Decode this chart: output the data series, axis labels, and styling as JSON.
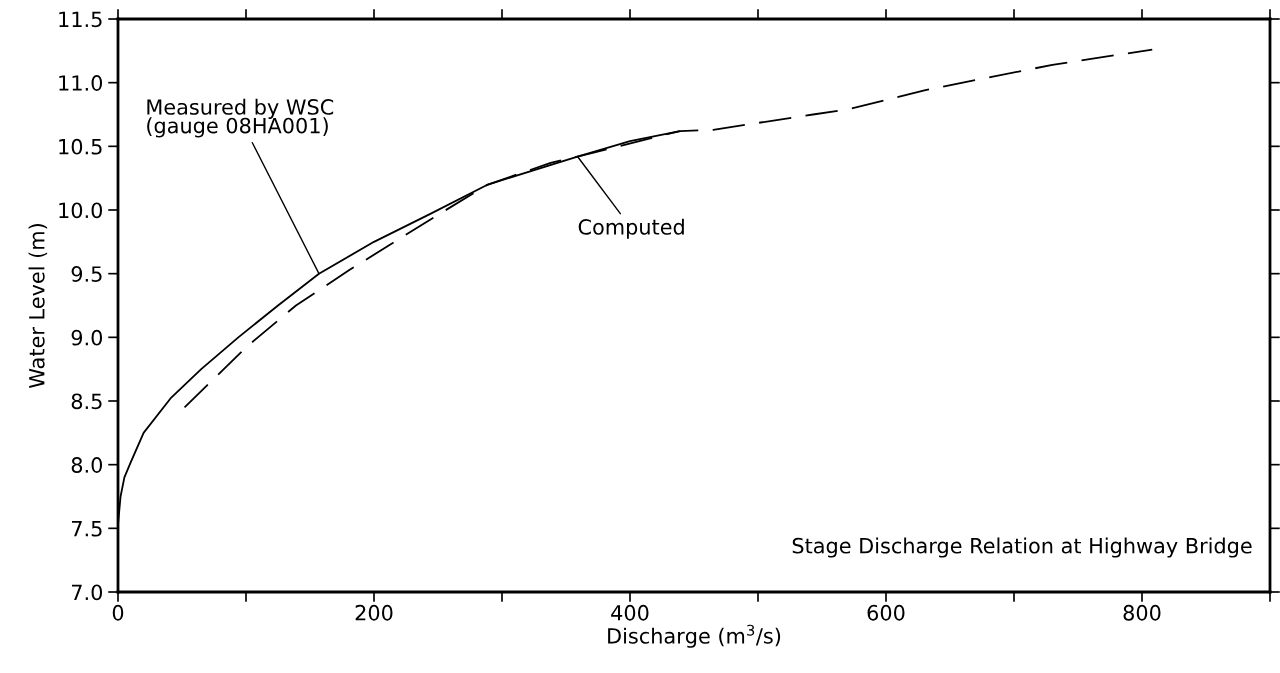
{
  "chart_data": {
    "type": "line",
    "title": "Stage Discharge Relation at Highway Bridge",
    "xlabel": "Discharge (m$^{3}$/s)",
    "ylabel": "Water Level (m)",
    "xlim": [
      0,
      900
    ],
    "ylim": [
      7.0,
      11.5
    ],
    "xticks": [
      0,
      {
        "value": 100,
        "label": null
      },
      200,
      {
        "value": 300,
        "label": null
      },
      400,
      {
        "value": 500,
        "label": null
      },
      600,
      {
        "value": 700,
        "label": null
      },
      800,
      {
        "value": 900,
        "label": null
      }
    ],
    "yticks": [
      {
        "value": 7.0,
        "label": "7.0"
      },
      {
        "value": 7.5,
        "label": "7.5"
      },
      {
        "value": 8.0,
        "label": "8.0"
      },
      {
        "value": 8.5,
        "label": "8.5"
      },
      {
        "value": 9.0,
        "label": "9.0"
      },
      {
        "value": 9.5,
        "label": "9.5"
      },
      {
        "value": 10.0,
        "label": "10.0"
      },
      {
        "value": 10.5,
        "label": "10.5"
      },
      {
        "value": 11.0,
        "label": "11.0"
      },
      {
        "value": 11.5,
        "label": "11.5"
      }
    ],
    "grid": false,
    "legend": false,
    "marker": "none",
    "series": [
      {
        "color": "#000000",
        "line_style": "solid",
        "x": [
          0,
          2,
          5,
          10,
          20,
          41,
          65,
          94,
          125,
          157,
          200,
          244,
          289,
          359,
          400,
          439
        ],
        "values": [
          7.53,
          7.75,
          7.9,
          8.02,
          8.25,
          8.52,
          8.75,
          9.0,
          9.25,
          9.5,
          9.75,
          9.97,
          10.2,
          10.42,
          10.54,
          10.62
        ]
      },
      {
        "color": "#000000",
        "line_style": "dashed",
        "x": [
          52,
          101,
          139,
          181,
          248,
          289,
          338,
          359,
          439,
          465,
          543,
          570,
          630,
          730,
          808
        ],
        "values": [
          8.45,
          8.93,
          9.25,
          9.53,
          9.95,
          10.2,
          10.37,
          10.42,
          10.62,
          10.63,
          10.75,
          10.79,
          10.94,
          11.14,
          11.26
        ]
      }
    ],
    "annotations": [
      {
        "text": "Measured by WSC\n(gauge 08HA001)",
        "x": 157,
        "y": 9.5
      },
      {
        "text": "Computed",
        "x": 359,
        "y": 10.42
      }
    ]
  }
}
